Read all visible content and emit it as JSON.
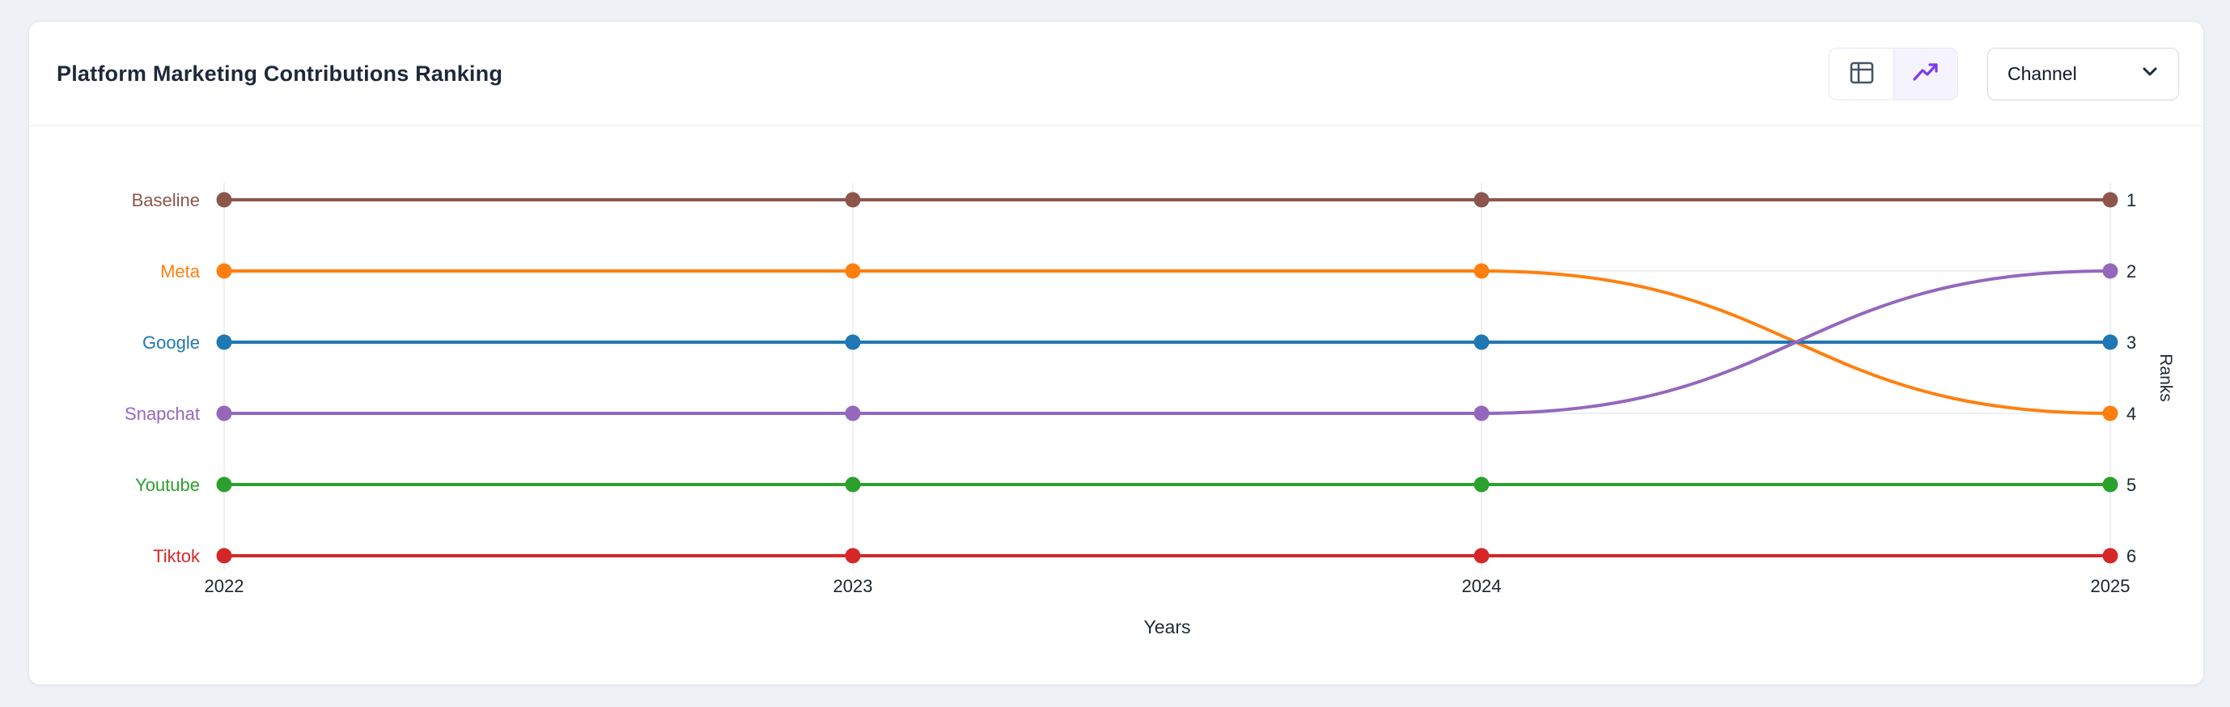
{
  "page": {
    "background": "#eef1f6"
  },
  "header": {
    "title": "Platform Marketing Contributions Ranking",
    "controls": {
      "view_toggle": {
        "options": [
          {
            "name": "table-view",
            "icon": "table-icon",
            "active": false
          },
          {
            "name": "trend-view",
            "icon": "trending-up-icon",
            "active": true
          }
        ],
        "active_color": "#7c3aed",
        "inactive_color": "#475569"
      },
      "channel_dropdown": {
        "label": "Channel",
        "icon": "chevron-down-icon"
      }
    }
  },
  "chart_data": {
    "type": "line",
    "subtype": "bump-ranking",
    "x": [
      "2022",
      "2023",
      "2024",
      "2025"
    ],
    "xlabel": "Years",
    "ylabel": "Ranks",
    "y_axis": {
      "side": "right",
      "ticks": [
        1,
        2,
        3,
        4,
        5,
        6
      ],
      "inverted": true
    },
    "grid": {
      "vertical": true,
      "horizontal": true,
      "color": "#e7eaef"
    },
    "series": [
      {
        "name": "Baseline",
        "color": "#8c564b",
        "ranks": [
          1,
          1,
          1,
          1
        ]
      },
      {
        "name": "Meta",
        "color": "#ff7f0e",
        "ranks": [
          2,
          2,
          2,
          4
        ]
      },
      {
        "name": "Google",
        "color": "#1f77b4",
        "ranks": [
          3,
          3,
          3,
          3
        ]
      },
      {
        "name": "Snapchat",
        "color": "#9467bd",
        "ranks": [
          4,
          4,
          4,
          2
        ]
      },
      {
        "name": "Youtube",
        "color": "#2ca02c",
        "ranks": [
          5,
          5,
          5,
          5
        ]
      },
      {
        "name": "Tiktok",
        "color": "#d62728",
        "ranks": [
          6,
          6,
          6,
          6
        ]
      }
    ],
    "text_colors": {
      "ticks": "#1b2430",
      "axis_titles": "#1f2937"
    }
  }
}
